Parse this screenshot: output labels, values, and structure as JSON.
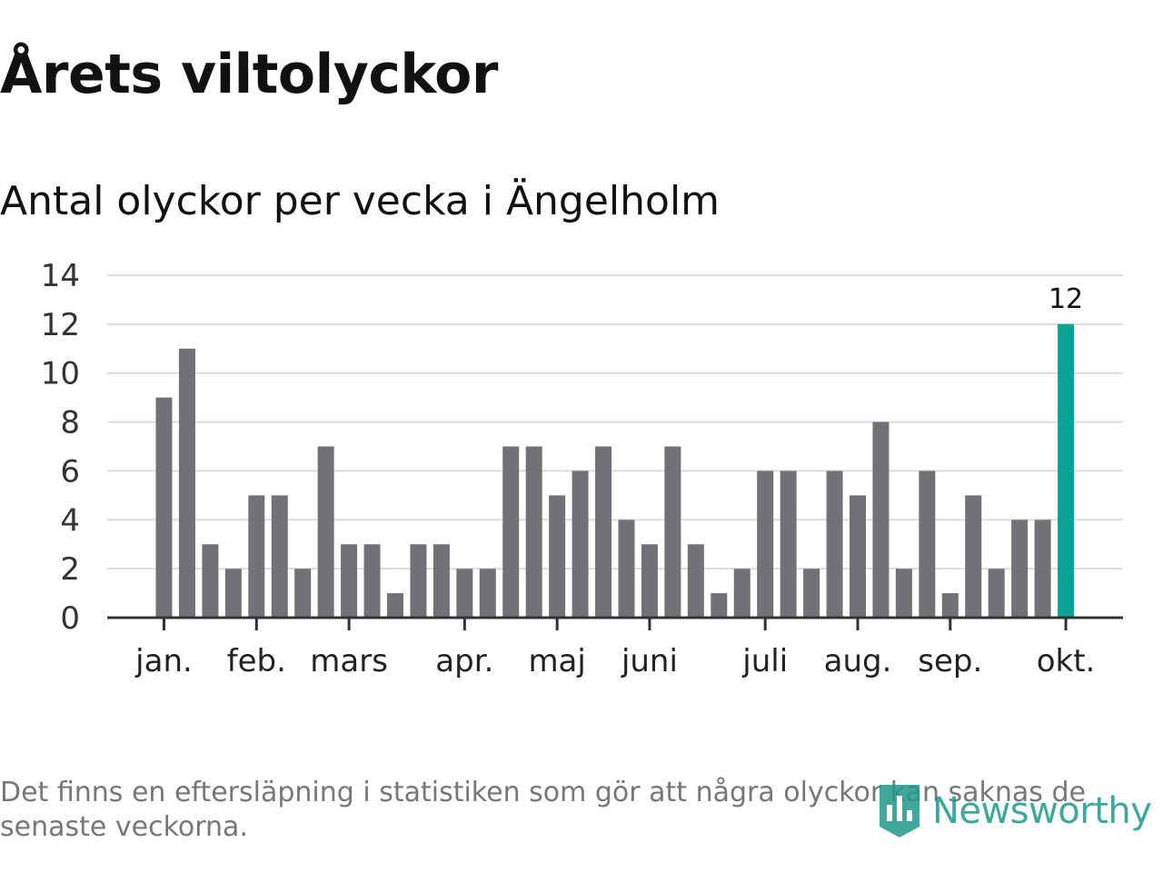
{
  "header": {
    "title": "Årets viltolyckor",
    "subtitle": "Antal olyckor per vecka i Ängelholm"
  },
  "footer": {
    "note": "Det finns en eftersläpning i statistiken som gör att några olyckor kan saknas de senaste veckorna.",
    "brand": "Newsworthy"
  },
  "colors": {
    "bar": "#727176",
    "highlight": "#0aa294",
    "grid": "#dddddd",
    "axis": "#333333"
  },
  "chart_data": {
    "type": "bar",
    "title": "Årets viltolyckor",
    "subtitle": "Antal olyckor per vecka i Ängelholm",
    "xlabel": "",
    "ylabel": "",
    "ylim": [
      0,
      14
    ],
    "yticks": [
      0,
      2,
      4,
      6,
      8,
      10,
      12,
      14
    ],
    "grid": true,
    "values": [
      9,
      11,
      3,
      2,
      5,
      5,
      2,
      7,
      3,
      3,
      1,
      3,
      3,
      2,
      2,
      7,
      7,
      5,
      6,
      7,
      4,
      3,
      7,
      3,
      1,
      2,
      6,
      6,
      2,
      6,
      5,
      8,
      2,
      6,
      1,
      5,
      2,
      4,
      4,
      12
    ],
    "highlight_index": 39,
    "highlight_label": "12",
    "month_ticks": [
      {
        "label": "jan.",
        "week": 0
      },
      {
        "label": "feb.",
        "week": 4
      },
      {
        "label": "mars",
        "week": 8
      },
      {
        "label": "apr.",
        "week": 13
      },
      {
        "label": "maj",
        "week": 17
      },
      {
        "label": "juni",
        "week": 21
      },
      {
        "label": "juli",
        "week": 26
      },
      {
        "label": "aug.",
        "week": 30
      },
      {
        "label": "sep.",
        "week": 34
      },
      {
        "label": "okt.",
        "week": 39
      }
    ]
  }
}
